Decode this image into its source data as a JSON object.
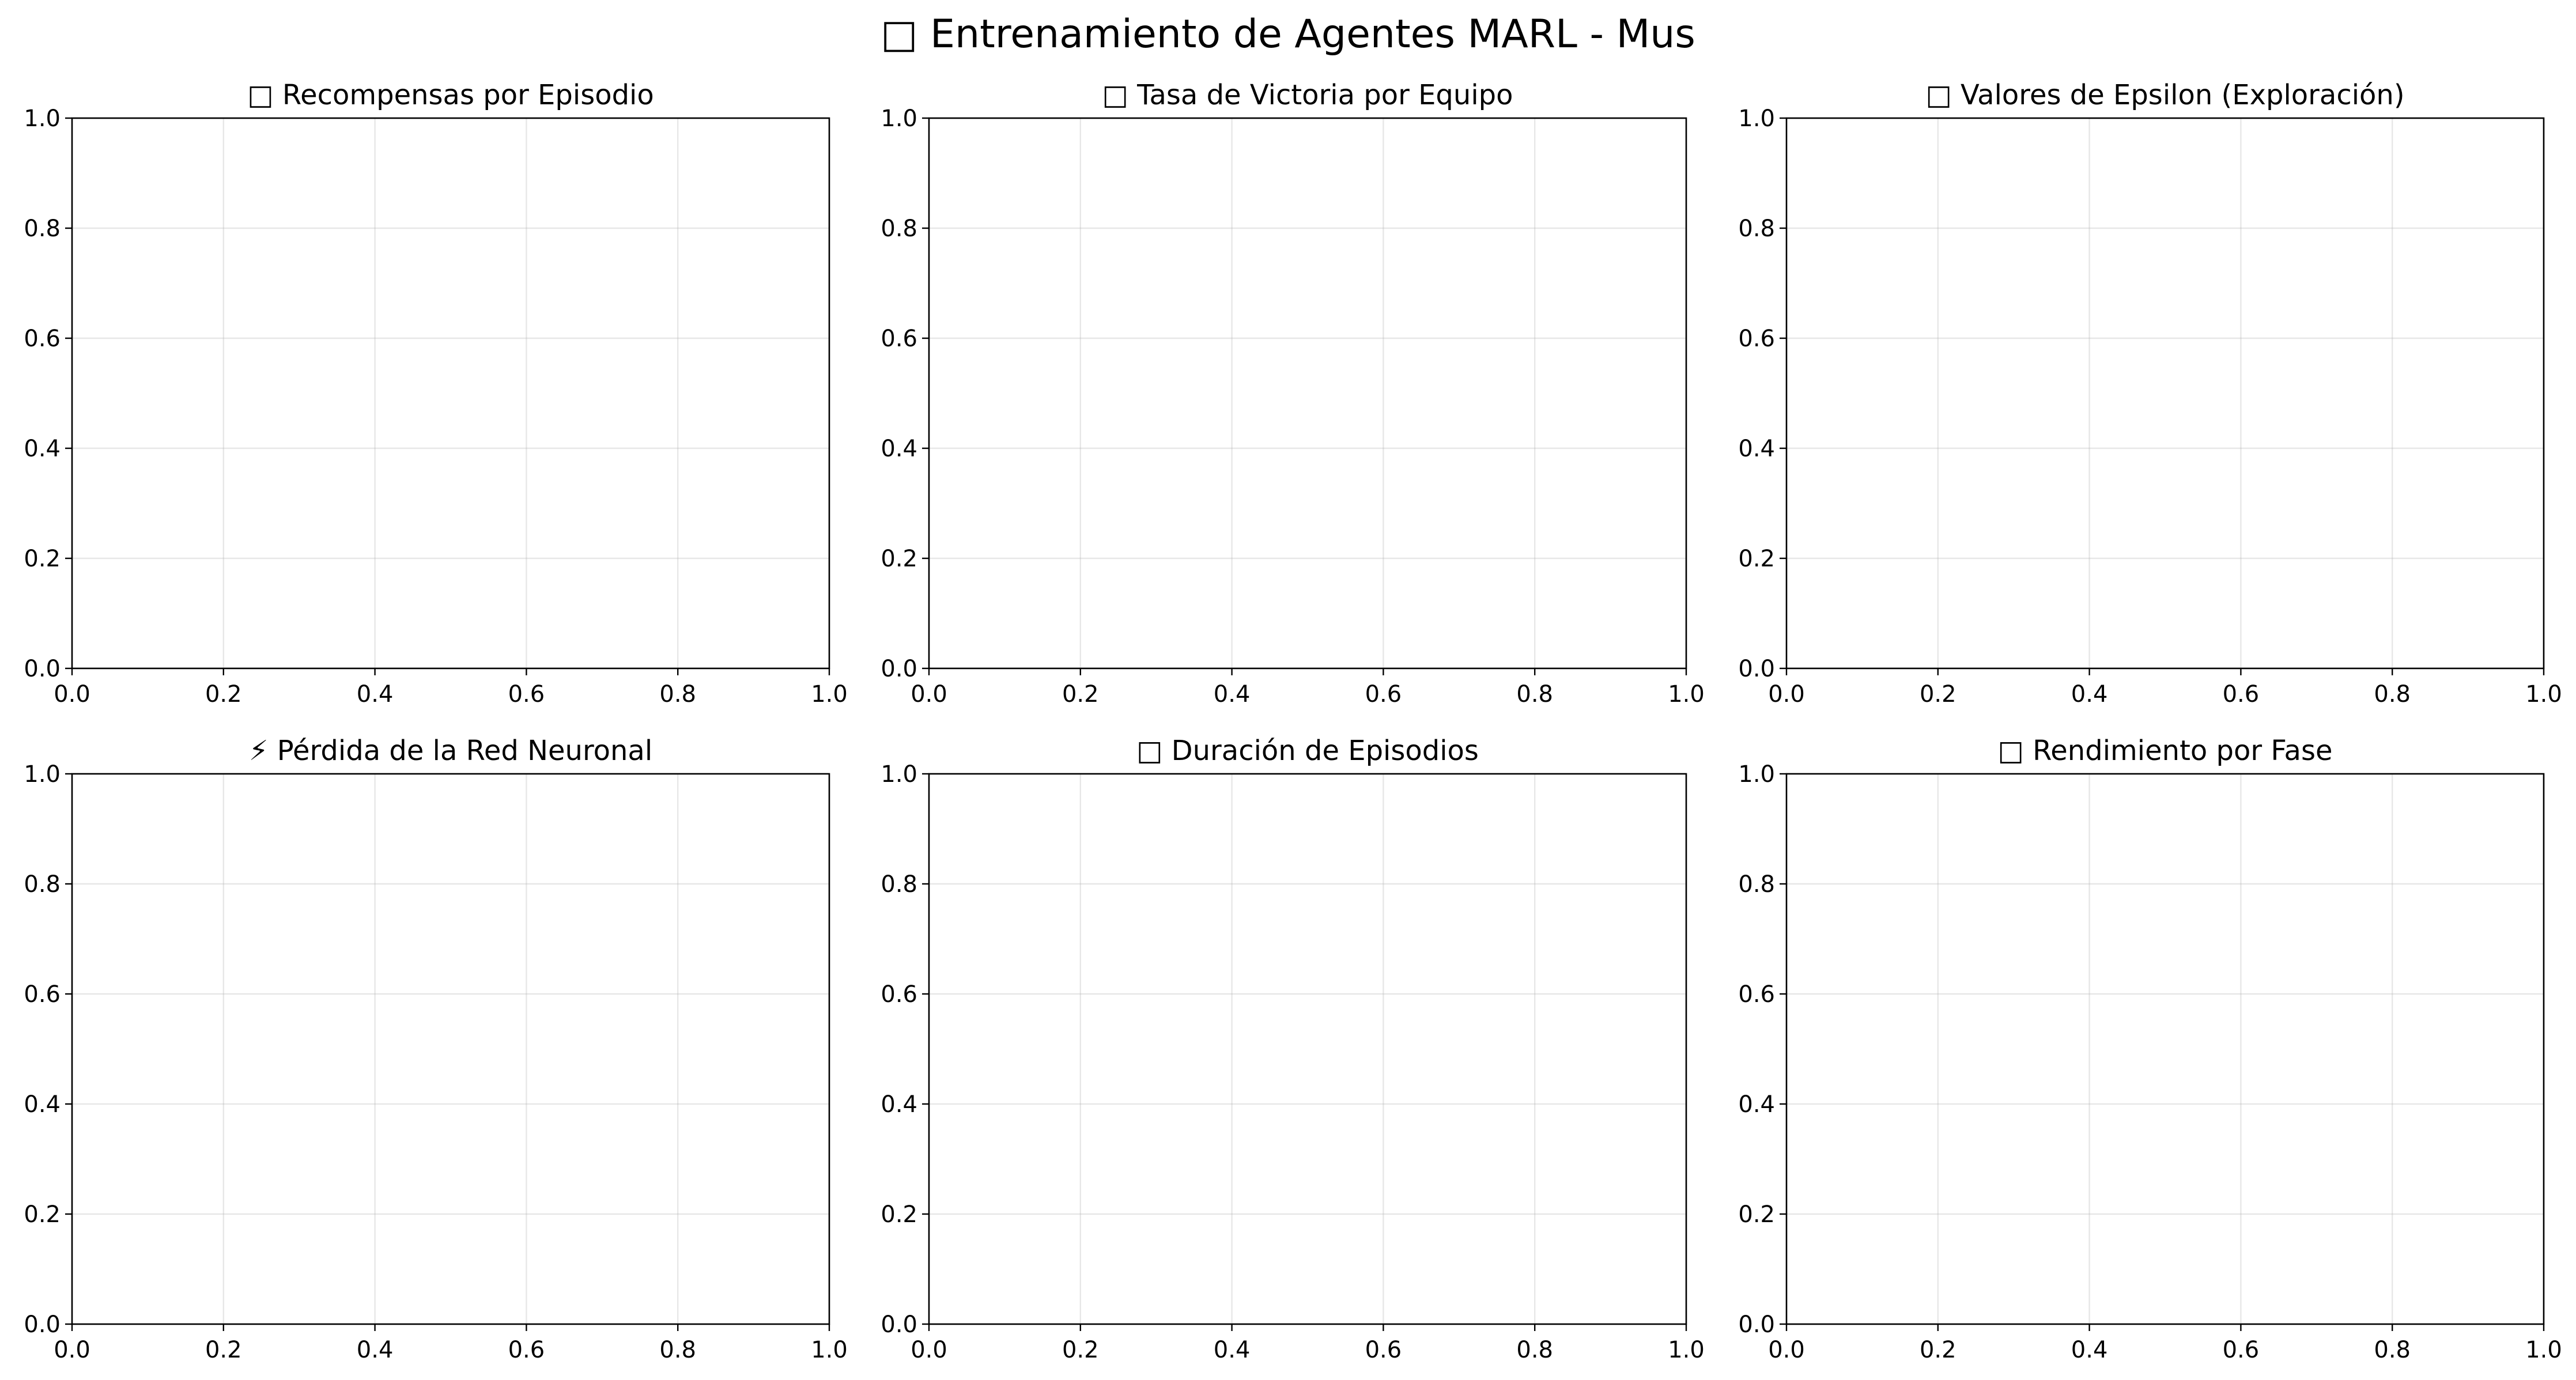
{
  "figure": {
    "title": "□ Entrenamiento de Agentes MARL - Mus"
  },
  "chart_data": [
    {
      "type": "line",
      "title": "□ Recompensas por Episodio",
      "xlabel": "",
      "ylabel": "",
      "xlim": [
        0,
        1
      ],
      "ylim": [
        0,
        1
      ],
      "xticks": [
        "0.0",
        "0.2",
        "0.4",
        "0.6",
        "0.8",
        "1.0"
      ],
      "yticks": [
        "0.0",
        "0.2",
        "0.4",
        "0.6",
        "0.8",
        "1.0"
      ],
      "grid": true,
      "series": []
    },
    {
      "type": "line",
      "title": "□ Tasa de Victoria por Equipo",
      "xlabel": "",
      "ylabel": "",
      "xlim": [
        0,
        1
      ],
      "ylim": [
        0,
        1
      ],
      "xticks": [
        "0.0",
        "0.2",
        "0.4",
        "0.6",
        "0.8",
        "1.0"
      ],
      "yticks": [
        "0.0",
        "0.2",
        "0.4",
        "0.6",
        "0.8",
        "1.0"
      ],
      "grid": true,
      "series": []
    },
    {
      "type": "line",
      "title": "□ Valores de Epsilon (Exploración)",
      "xlabel": "",
      "ylabel": "",
      "xlim": [
        0,
        1
      ],
      "ylim": [
        0,
        1
      ],
      "xticks": [
        "0.0",
        "0.2",
        "0.4",
        "0.6",
        "0.8",
        "1.0"
      ],
      "yticks": [
        "0.0",
        "0.2",
        "0.4",
        "0.6",
        "0.8",
        "1.0"
      ],
      "grid": true,
      "series": []
    },
    {
      "type": "line",
      "title": "⚡ Pérdida de la Red Neuronal",
      "xlabel": "",
      "ylabel": "",
      "xlim": [
        0,
        1
      ],
      "ylim": [
        0,
        1
      ],
      "xticks": [
        "0.0",
        "0.2",
        "0.4",
        "0.6",
        "0.8",
        "1.0"
      ],
      "yticks": [
        "0.0",
        "0.2",
        "0.4",
        "0.6",
        "0.8",
        "1.0"
      ],
      "grid": true,
      "series": []
    },
    {
      "type": "line",
      "title": "□ Duración de Episodios",
      "xlabel": "",
      "ylabel": "",
      "xlim": [
        0,
        1
      ],
      "ylim": [
        0,
        1
      ],
      "xticks": [
        "0.0",
        "0.2",
        "0.4",
        "0.6",
        "0.8",
        "1.0"
      ],
      "yticks": [
        "0.0",
        "0.2",
        "0.4",
        "0.6",
        "0.8",
        "1.0"
      ],
      "grid": true,
      "series": []
    },
    {
      "type": "line",
      "title": "□ Rendimiento por Fase",
      "xlabel": "",
      "ylabel": "",
      "xlim": [
        0,
        1
      ],
      "ylim": [
        0,
        1
      ],
      "xticks": [
        "0.0",
        "0.2",
        "0.4",
        "0.6",
        "0.8",
        "1.0"
      ],
      "yticks": [
        "0.0",
        "0.2",
        "0.4",
        "0.6",
        "0.8",
        "1.0"
      ],
      "grid": true,
      "series": []
    }
  ]
}
